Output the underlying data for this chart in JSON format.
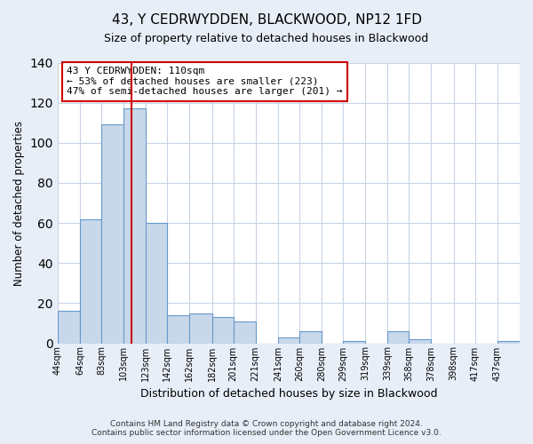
{
  "title": "43, Y CEDRWYDDEN, BLACKWOOD, NP12 1FD",
  "subtitle": "Size of property relative to detached houses in Blackwood",
  "xlabel": "Distribution of detached houses by size in Blackwood",
  "ylabel": "Number of detached properties",
  "bin_labels": [
    "44sqm",
    "64sqm",
    "83sqm",
    "103sqm",
    "123sqm",
    "142sqm",
    "162sqm",
    "182sqm",
    "201sqm",
    "221sqm",
    "241sqm",
    "260sqm",
    "280sqm",
    "299sqm",
    "319sqm",
    "339sqm",
    "358sqm",
    "378sqm",
    "398sqm",
    "417sqm",
    "437sqm"
  ],
  "bin_edges": [
    44,
    64,
    83,
    103,
    123,
    142,
    162,
    182,
    201,
    221,
    241,
    260,
    280,
    299,
    319,
    339,
    358,
    378,
    398,
    417,
    437
  ],
  "bar_heights": [
    16,
    62,
    109,
    117,
    60,
    14,
    15,
    13,
    11,
    0,
    3,
    6,
    0,
    1,
    0,
    6,
    2,
    0,
    0,
    0,
    1
  ],
  "bar_color": "#c8d8ea",
  "bar_edge_color": "#6699cc",
  "property_size": 110,
  "red_line_color": "#cc0000",
  "annotation_text": "43 Y CEDRWYDDEN: 110sqm\n← 53% of detached houses are smaller (223)\n47% of semi-detached houses are larger (201) →",
  "annotation_box_color": "#ffffff",
  "annotation_box_edge_color": "#cc0000",
  "ylim": [
    0,
    140
  ],
  "yticks": [
    0,
    20,
    40,
    60,
    80,
    100,
    120,
    140
  ],
  "grid_color": "#c8d4e4",
  "plot_bg_color": "#ffffff",
  "figure_bg_color": "#e8eef8",
  "footer_line1": "Contains HM Land Registry data © Crown copyright and database right 2024.",
  "footer_line2": "Contains public sector information licensed under the Open Government Licence v3.0."
}
